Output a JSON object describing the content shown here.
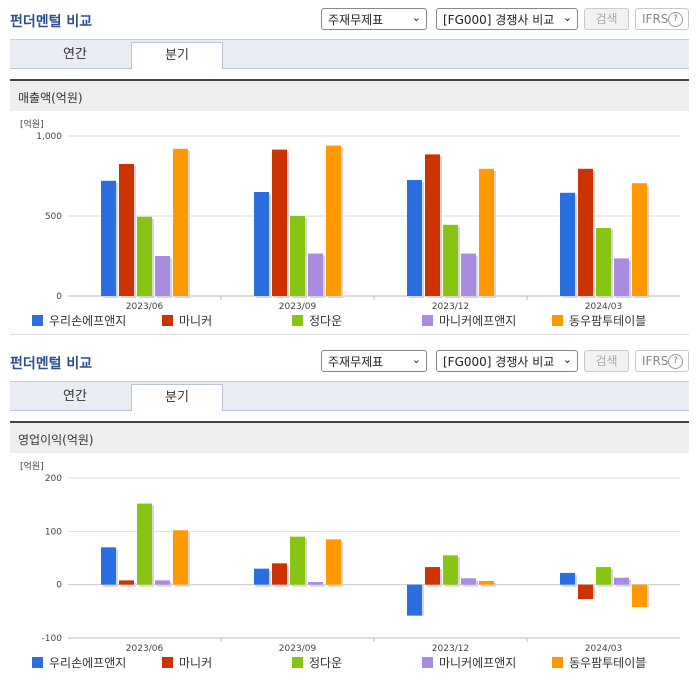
{
  "panels": [
    {
      "title": "펀더멘털 비교",
      "select1": "주재무제표",
      "select2": "[FG000] 경쟁사 비교",
      "search_label": "검색",
      "ifrs_label": "IFRS",
      "help_label": "?",
      "tabs": [
        "연간",
        "분기"
      ],
      "section_title": "매출액(억원)",
      "unit": "[억원]"
    },
    {
      "title": "펀더멘털 비교",
      "select1": "주재무제표",
      "select2": "[FG000] 경쟁사 비교",
      "search_label": "검색",
      "ifrs_label": "IFRS",
      "help_label": "?",
      "tabs": [
        "연간",
        "분기"
      ],
      "section_title": "영업이익(억원)",
      "unit": "[억원]"
    }
  ],
  "colors": [
    "#2b6ee0",
    "#cc3300",
    "#88c414",
    "#a98ce0",
    "#ff9900"
  ],
  "chart_data": [
    {
      "type": "bar",
      "title": "매출액(억원)",
      "categories": [
        "2023/06",
        "2023/09",
        "2023/12",
        "2024/03"
      ],
      "ylim": [
        0,
        1000
      ],
      "yticks": [
        "1,000",
        "500",
        "0"
      ],
      "ytick_values": [
        1000,
        500,
        0
      ],
      "series": [
        {
          "name": "우리손에프앤지",
          "values": [
            720,
            650,
            725,
            645
          ]
        },
        {
          "name": "마니커",
          "values": [
            825,
            915,
            885,
            795
          ]
        },
        {
          "name": "정다운",
          "values": [
            495,
            500,
            445,
            425
          ]
        },
        {
          "name": "마니커에프앤지",
          "values": [
            250,
            265,
            265,
            235
          ]
        },
        {
          "name": "동우팜투테이블",
          "values": [
            920,
            940,
            795,
            705
          ]
        }
      ]
    },
    {
      "type": "bar",
      "title": "영업이익(억원)",
      "categories": [
        "2023/06",
        "2023/09",
        "2023/12",
        "2024/03"
      ],
      "ylim": [
        -100,
        200
      ],
      "yticks": [
        "200",
        "100",
        "0",
        "-100"
      ],
      "ytick_values": [
        200,
        100,
        0,
        -100
      ],
      "series": [
        {
          "name": "우리손에프앤지",
          "values": [
            70,
            30,
            -58,
            22
          ]
        },
        {
          "name": "마니커",
          "values": [
            8,
            40,
            33,
            -27
          ]
        },
        {
          "name": "정다운",
          "values": [
            152,
            90,
            55,
            33
          ]
        },
        {
          "name": "마니커에프앤지",
          "values": [
            8,
            5,
            12,
            13
          ]
        },
        {
          "name": "동우팜투테이블",
          "values": [
            102,
            85,
            7,
            -42
          ]
        }
      ]
    }
  ]
}
